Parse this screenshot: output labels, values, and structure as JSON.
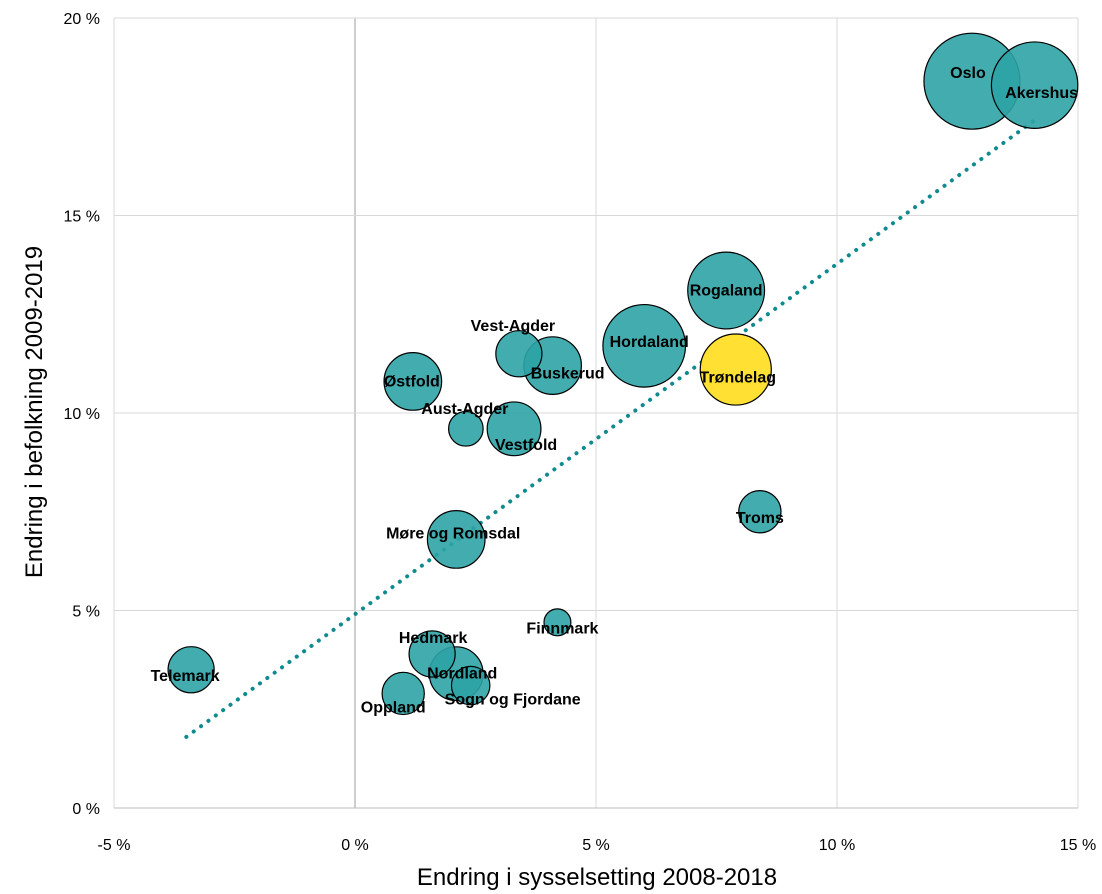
{
  "chart_data": {
    "type": "bubble",
    "title": "",
    "xlabel": "Endring i sysselsetting 2008-2018",
    "ylabel": "Endring i befolkning  2009-2019",
    "xlim": [
      -5,
      15
    ],
    "ylim": [
      0,
      20
    ],
    "xticks": [
      -5,
      0,
      5,
      10,
      15
    ],
    "yticks": [
      0,
      5,
      10,
      15,
      20
    ],
    "xtick_labels": [
      "-5 %",
      "0 %",
      "5 %",
      "10 %",
      "15 %"
    ],
    "ytick_labels": [
      "0 %",
      "5 %",
      "10 %",
      "15 %",
      "20 %"
    ],
    "grid": true,
    "trendline": {
      "style": "dotted",
      "color": "#0f8a8f",
      "from": [
        -3.5,
        1.8
      ],
      "to": [
        14.2,
        17.5
      ]
    },
    "points": [
      {
        "name": "Oslo",
        "x": 12.8,
        "y": 18.4,
        "size": 50,
        "color": "#2ea3a6"
      },
      {
        "name": "Akershus",
        "x": 14.1,
        "y": 18.3,
        "size": 45,
        "color": "#2ea3a6"
      },
      {
        "name": "Rogaland",
        "x": 7.7,
        "y": 13.1,
        "size": 40,
        "color": "#2ea3a6"
      },
      {
        "name": "Hordaland",
        "x": 6.0,
        "y": 11.7,
        "size": 43,
        "color": "#2ea3a6"
      },
      {
        "name": "Trøndelag",
        "x": 7.9,
        "y": 11.1,
        "size": 37,
        "color": "#ffe033"
      },
      {
        "name": "Vest-Agder",
        "x": 3.4,
        "y": 11.5,
        "size": 24,
        "color": "#2ea3a6"
      },
      {
        "name": "Buskerud",
        "x": 4.1,
        "y": 11.2,
        "size": 30,
        "color": "#2ea3a6"
      },
      {
        "name": "Østfold",
        "x": 1.2,
        "y": 10.8,
        "size": 30,
        "color": "#2ea3a6"
      },
      {
        "name": "Aust-Agder",
        "x": 2.3,
        "y": 9.6,
        "size": 18,
        "color": "#2ea3a6"
      },
      {
        "name": "Vestfold",
        "x": 3.3,
        "y": 9.6,
        "size": 28,
        "color": "#2ea3a6"
      },
      {
        "name": "Troms",
        "x": 8.4,
        "y": 7.5,
        "size": 22,
        "color": "#2ea3a6"
      },
      {
        "name": "Møre og Romsdal",
        "x": 2.1,
        "y": 6.8,
        "size": 30,
        "color": "#2ea3a6"
      },
      {
        "name": "Finnmark",
        "x": 4.2,
        "y": 4.7,
        "size": 14,
        "color": "#2ea3a6"
      },
      {
        "name": "Hedmark",
        "x": 1.6,
        "y": 3.9,
        "size": 24,
        "color": "#2ea3a6"
      },
      {
        "name": "Nordland",
        "x": 2.1,
        "y": 3.4,
        "size": 28,
        "color": "#2ea3a6"
      },
      {
        "name": "Sogn og Fjordane",
        "x": 2.4,
        "y": 3.1,
        "size": 20,
        "color": "#2ea3a6"
      },
      {
        "name": "Oppland",
        "x": 1.0,
        "y": 2.9,
        "size": 22,
        "color": "#2ea3a6"
      },
      {
        "name": "Telemark",
        "x": -3.4,
        "y": 3.5,
        "size": 24,
        "color": "#2ea3a6"
      }
    ]
  }
}
